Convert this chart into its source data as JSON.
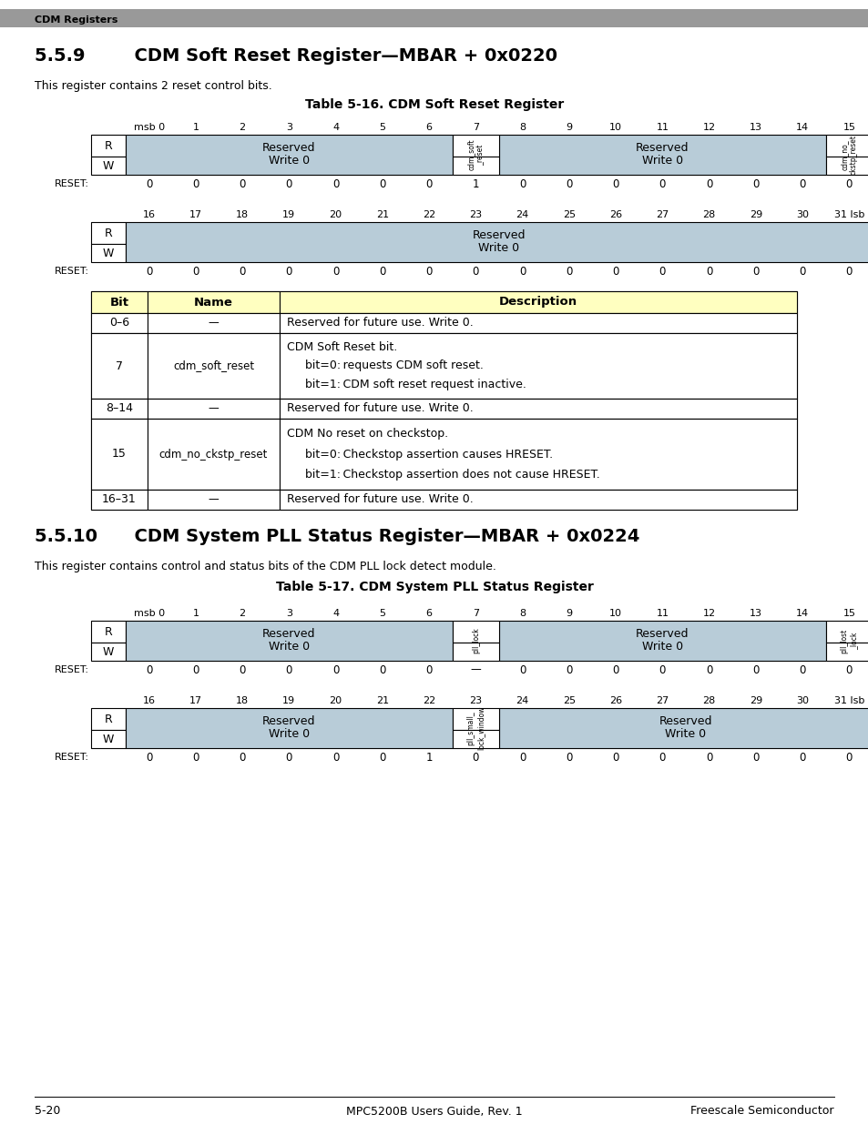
{
  "page_header": "CDM Registers",
  "section1_title": "5.5.9        CDM Soft Reset Register—MBAR + 0x0220",
  "section1_desc": "This register contains 2 reset control bits.",
  "table1_title": "Table 5-16. CDM Soft Reset Register",
  "section2_title": "5.5.10      CDM System PLL Status Register—MBAR + 0x0224",
  "section2_desc": "This register contains control and status bits of the CDM PLL lock detect module.",
  "table2_title": "Table 5-17. CDM System PLL Status Register",
  "page_footer_left": "5-20",
  "page_footer_center": "MPC5200B Users Guide, Rev. 1",
  "page_footer_right": "Freescale Semiconductor",
  "bg_color": "#ffffff",
  "header_bar_color": "#999999",
  "cell_reserved_color": "#b8ccd8",
  "bit_table_header_color": "#ffffc0",
  "reset_values_1": [
    "0",
    "0",
    "0",
    "0",
    "0",
    "0",
    "0",
    "1",
    "0",
    "0",
    "0",
    "0",
    "0",
    "0",
    "0",
    "0"
  ],
  "reset_values_2": [
    "0",
    "0",
    "0",
    "0",
    "0",
    "0",
    "0",
    "0",
    "0",
    "0",
    "0",
    "0",
    "0",
    "0",
    "0",
    "0"
  ],
  "reset_values_3": [
    "0",
    "0",
    "0",
    "0",
    "0",
    "0",
    "0",
    "—",
    "0",
    "0",
    "0",
    "0",
    "0",
    "0",
    "0",
    "0"
  ],
  "reset_values_4": [
    "0",
    "0",
    "0",
    "0",
    "0",
    "0",
    "1",
    "0",
    "0",
    "0",
    "0",
    "0",
    "0",
    "0",
    "0",
    "0"
  ],
  "bit_labels_top": [
    "msb 0",
    "1",
    "2",
    "3",
    "4",
    "5",
    "6",
    "7",
    "8",
    "9",
    "10",
    "11",
    "12",
    "13",
    "14",
    "15"
  ],
  "bit_labels_bot": [
    "16",
    "17",
    "18",
    "19",
    "20",
    "21",
    "22",
    "23",
    "24",
    "25",
    "26",
    "27",
    "28",
    "29",
    "30",
    "31 lsb"
  ]
}
